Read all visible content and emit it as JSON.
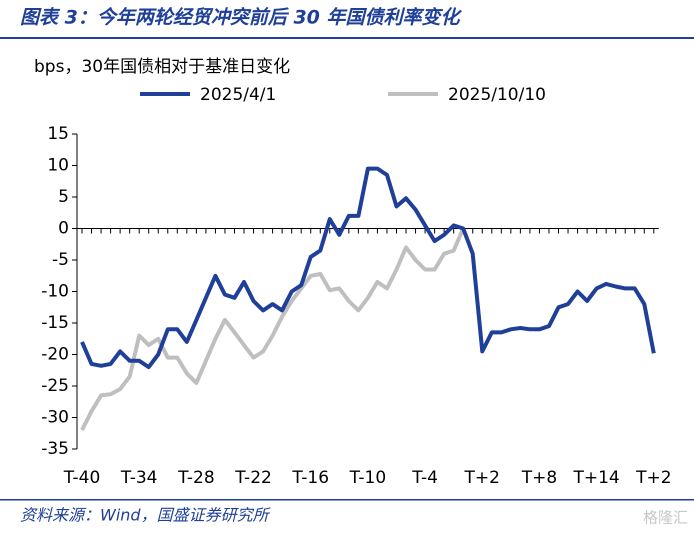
{
  "chart_data": {
    "type": "line",
    "title": "图表 3：今年两轮经贸冲突前后 30 年国债利率变化",
    "y_axis_label": "bps，30年国债相对于基准日变化",
    "source": "资料来源：Wind，国盛证券研究所",
    "watermark": "格隆汇",
    "categories": [
      "T-40",
      null,
      null,
      null,
      null,
      null,
      "T-34",
      null,
      null,
      null,
      null,
      null,
      "T-28",
      null,
      null,
      null,
      null,
      null,
      "T-22",
      null,
      null,
      null,
      null,
      null,
      "T-16",
      null,
      null,
      null,
      null,
      null,
      "T-10",
      null,
      null,
      null,
      null,
      null,
      "T-4",
      null,
      null,
      null,
      null,
      null,
      "T+2",
      null,
      null,
      null,
      null,
      null,
      "T+8",
      null,
      null,
      null,
      null,
      null,
      "T+14",
      null,
      null,
      null,
      null,
      null,
      "T+2"
    ],
    "series": [
      {
        "name": "2025/4/1",
        "color": "#1f3f99",
        "values": [
          -18,
          -21.5,
          -21.8,
          -21.5,
          -19.5,
          -21,
          -21,
          -22,
          -20,
          -16,
          -16,
          -18,
          -14.5,
          -11,
          -7.5,
          -10.5,
          -11,
          -8.5,
          -11.5,
          -13,
          -12,
          -13,
          -10,
          -9,
          -4.5,
          -3.5,
          1.5,
          -1,
          2,
          2,
          9.5,
          9.5,
          8.5,
          3.5,
          4.8,
          3,
          0.5,
          -2,
          -1,
          0.5,
          0,
          -4,
          -19.5,
          -16.5,
          -16.5,
          -16,
          -15.8,
          -16,
          -16,
          -15.5,
          -12.5,
          -12,
          -10,
          -11.5,
          -9.5,
          -8.8,
          -9.2,
          -9.5,
          -9.5,
          -12,
          -19.8
        ]
      },
      {
        "name": "2025/10/10",
        "color": "#bfbfbf",
        "values": [
          -32,
          -29,
          -26.5,
          -26.3,
          -25.5,
          -23.5,
          -17,
          -18.5,
          -17.5,
          -20.5,
          -20.5,
          -23,
          -24.5,
          -21,
          -17.5,
          -14.5,
          -16.5,
          -18.5,
          -20.5,
          -19.5,
          -17,
          -14,
          -11.5,
          -9.5,
          -7.5,
          -7.2,
          -9.8,
          -9.5,
          -11.5,
          -13,
          -11,
          -8.5,
          -9.5,
          -6.5,
          -3,
          -5,
          -6.5,
          -6.5,
          -4,
          -3.5,
          0,
          null,
          null,
          null,
          null,
          null,
          null,
          null,
          null,
          null,
          null,
          null,
          null,
          null,
          null,
          null,
          null,
          null,
          null,
          null,
          null
        ]
      }
    ],
    "ylim": [
      -35,
      15
    ],
    "yticks": [
      15,
      10,
      5,
      0,
      -5,
      -10,
      -15,
      -20,
      -25,
      -30,
      -35
    ]
  }
}
